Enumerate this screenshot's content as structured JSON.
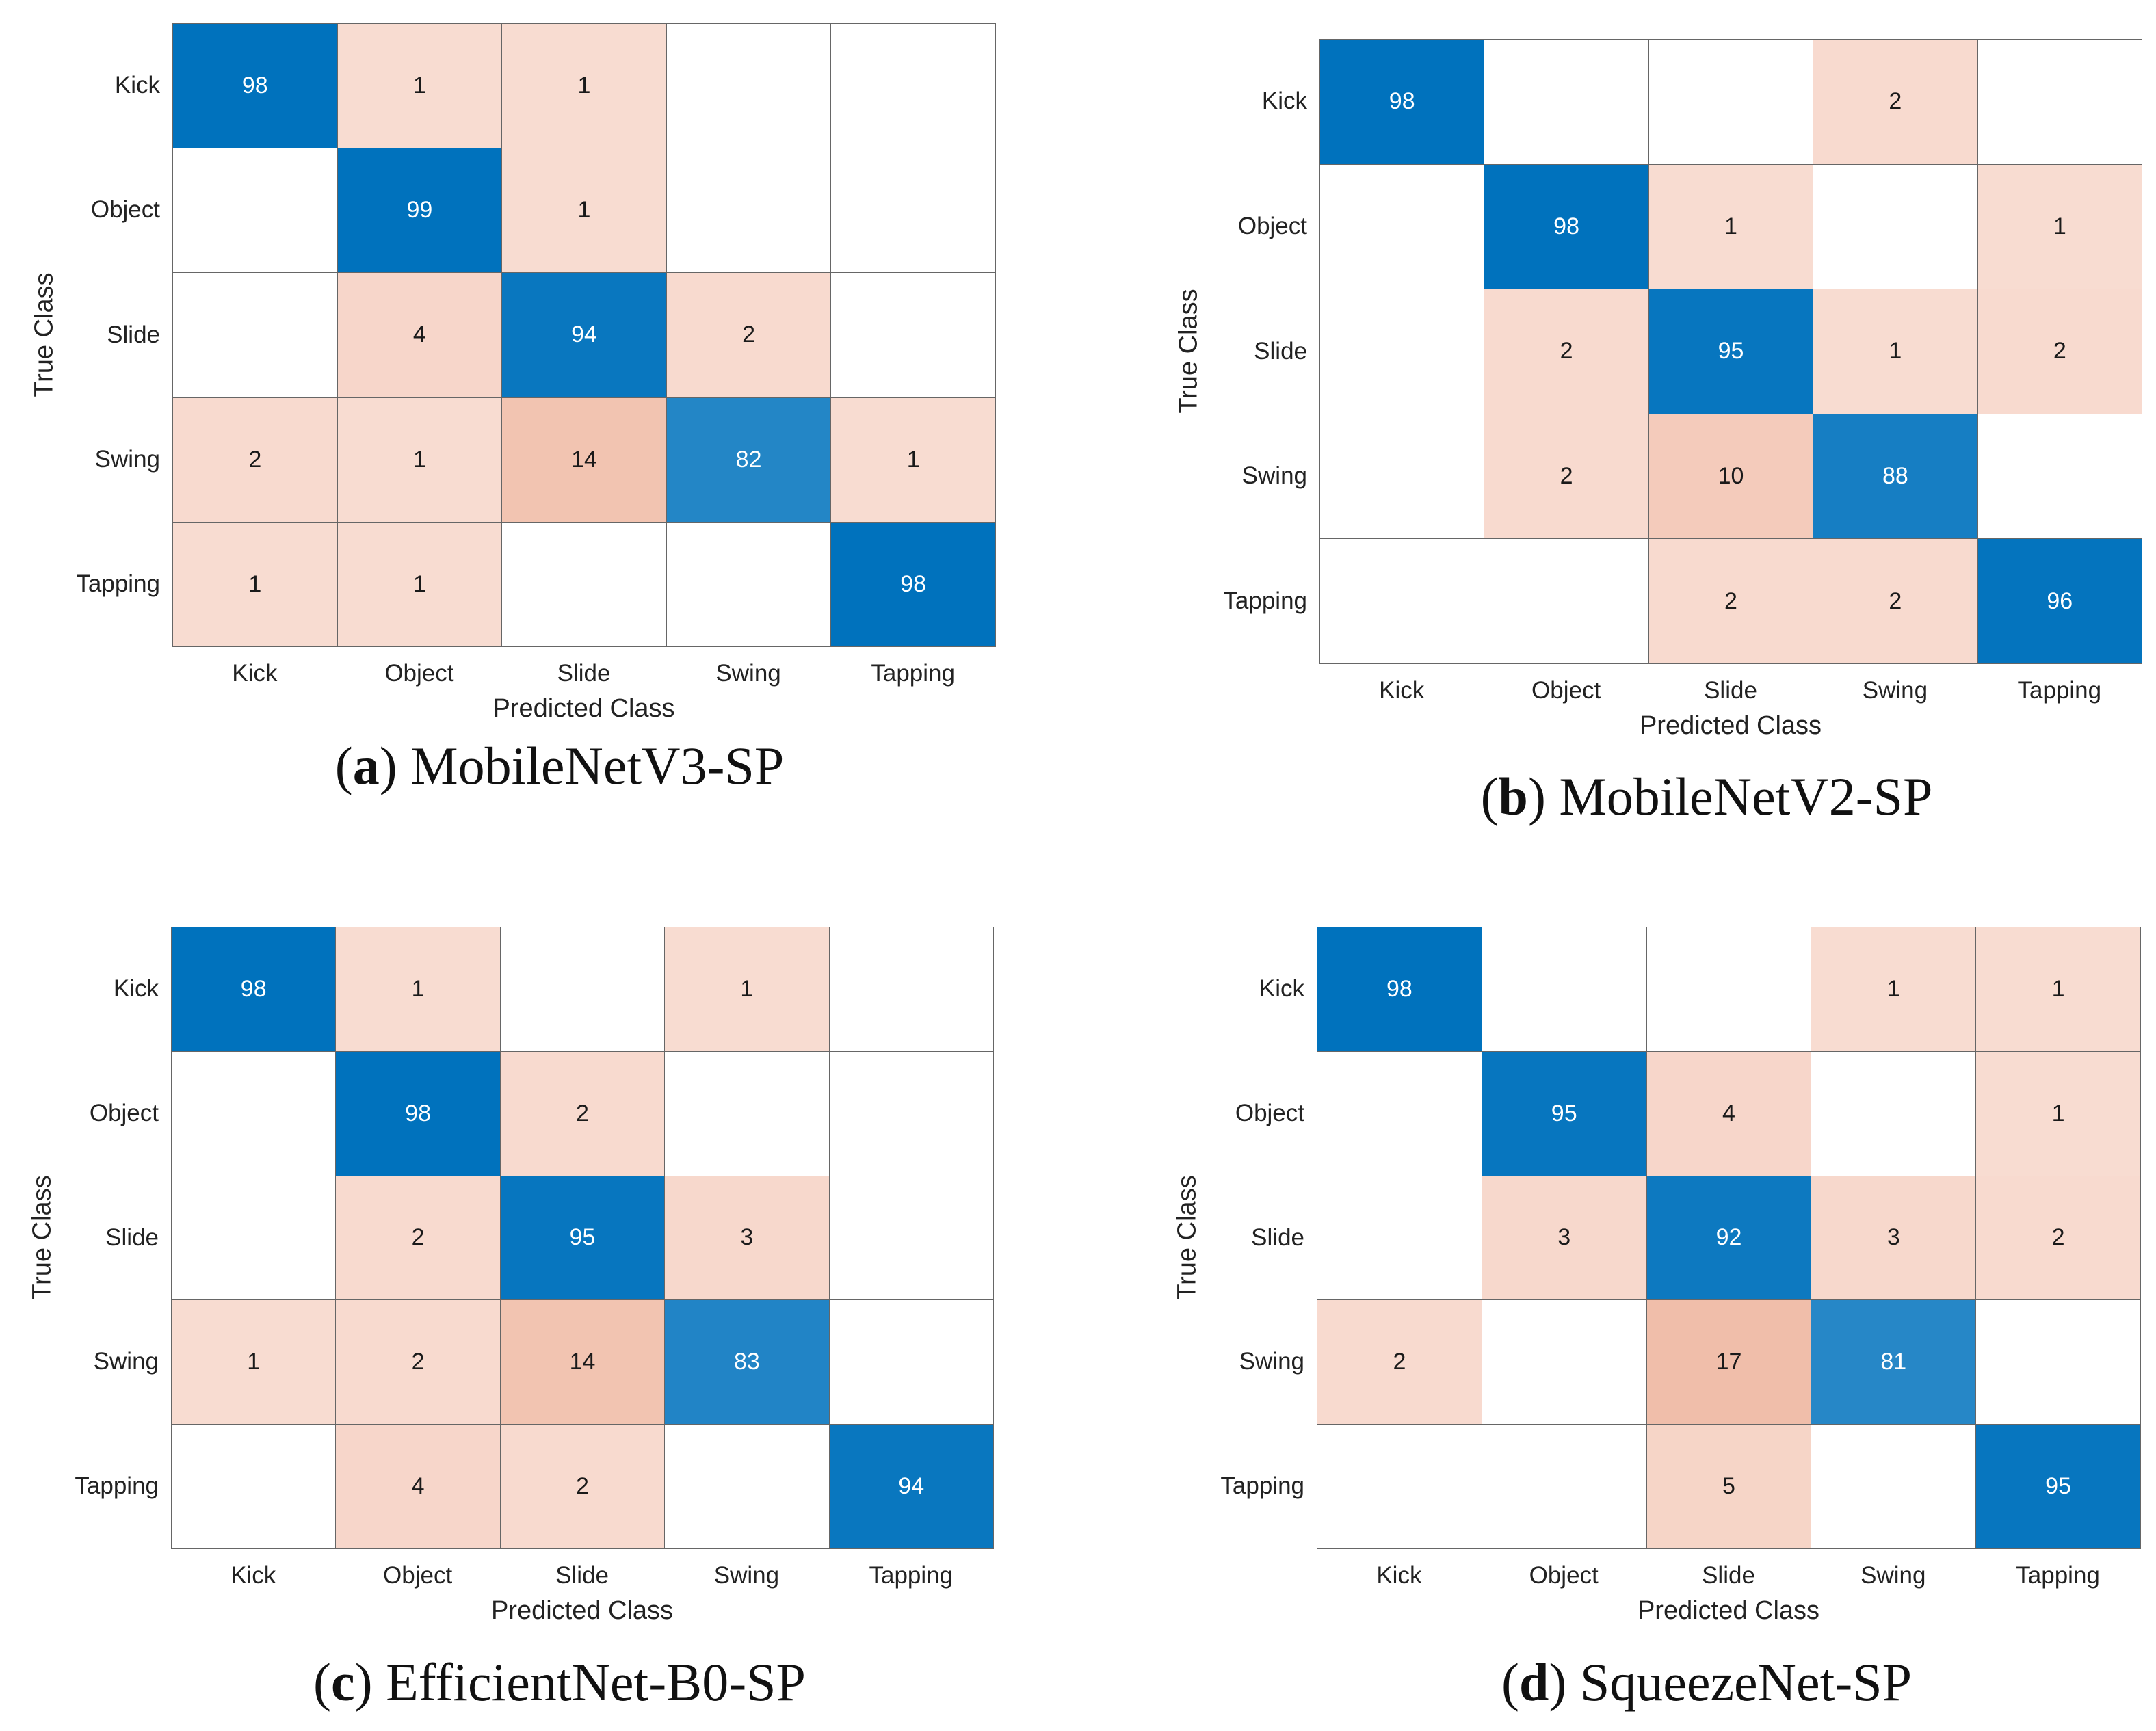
{
  "chart_data": [
    {
      "type": "heatmap",
      "title": "MobileNetV3-SP",
      "caption_label": "a",
      "xlabel": "Predicted Class",
      "ylabel": "True Class",
      "classes": [
        "Kick",
        "Object",
        "Slide",
        "Swing",
        "Tapping"
      ],
      "values": [
        [
          98,
          1,
          1,
          0,
          0
        ],
        [
          0,
          99,
          1,
          0,
          0
        ],
        [
          0,
          4,
          94,
          2,
          0
        ],
        [
          2,
          1,
          14,
          82,
          1
        ],
        [
          1,
          1,
          0,
          0,
          98
        ]
      ]
    },
    {
      "type": "heatmap",
      "title": "MobileNetV2-SP",
      "caption_label": "b",
      "xlabel": "Predicted Class",
      "ylabel": "True Class",
      "classes": [
        "Kick",
        "Object",
        "Slide",
        "Swing",
        "Tapping"
      ],
      "values": [
        [
          98,
          0,
          0,
          2,
          0
        ],
        [
          0,
          98,
          1,
          0,
          1
        ],
        [
          0,
          2,
          95,
          1,
          2
        ],
        [
          0,
          2,
          10,
          88,
          0
        ],
        [
          0,
          0,
          2,
          2,
          96
        ]
      ]
    },
    {
      "type": "heatmap",
      "title": "EfficientNet-B0-SP",
      "caption_label": "c",
      "xlabel": "Predicted Class",
      "ylabel": "True Class",
      "classes": [
        "Kick",
        "Object",
        "Slide",
        "Swing",
        "Tapping"
      ],
      "values": [
        [
          98,
          1,
          0,
          1,
          0
        ],
        [
          0,
          98,
          2,
          0,
          0
        ],
        [
          0,
          2,
          95,
          3,
          0
        ],
        [
          1,
          2,
          14,
          83,
          0
        ],
        [
          0,
          4,
          2,
          0,
          94
        ]
      ]
    },
    {
      "type": "heatmap",
      "title": "SqueezeNet-SP",
      "caption_label": "d",
      "xlabel": "Predicted Class",
      "ylabel": "True Class",
      "classes": [
        "Kick",
        "Object",
        "Slide",
        "Swing",
        "Tapping"
      ],
      "values": [
        [
          98,
          0,
          0,
          1,
          1
        ],
        [
          0,
          95,
          4,
          0,
          1
        ],
        [
          0,
          3,
          92,
          3,
          2
        ],
        [
          2,
          0,
          17,
          81,
          0
        ],
        [
          0,
          0,
          5,
          0,
          95
        ]
      ]
    }
  ],
  "colors": {
    "diagonal": "#0072BD",
    "offdiagonal": "#F8DCD1"
  }
}
